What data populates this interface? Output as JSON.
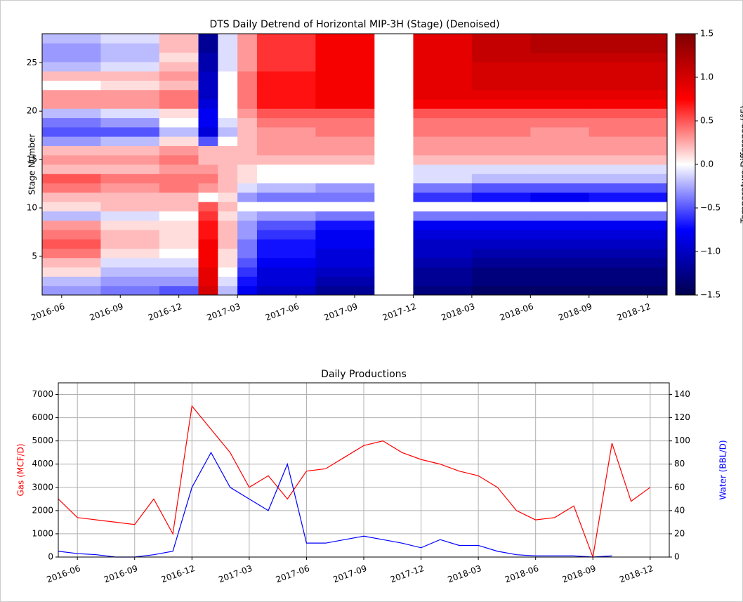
{
  "chart_data": [
    {
      "type": "heatmap",
      "title": "DTS Daily Detrend of Horizontal MIP-3H (Stage)  (Denoised)",
      "ylabel": "Stage Number",
      "colormap": "seismic",
      "x_bins": [
        "2016-05",
        "2016-08",
        "2016-11",
        "2017-01",
        "2017-02",
        "2017-03",
        "2017-04",
        "2017-07",
        "2017-10",
        "2017-12",
        "2018-03",
        "2018-06",
        "2018-09",
        "2019-01"
      ],
      "xlim": [
        "2016-05",
        "2019-01"
      ],
      "xticks": [
        "2016-06",
        "2016-09",
        "2016-12",
        "2017-03",
        "2017-06",
        "2017-09",
        "2017-12",
        "2018-03",
        "2018-06",
        "2018-09",
        "2018-12"
      ],
      "ylim": [
        1,
        28
      ],
      "yticks": [
        5,
        10,
        15,
        20,
        25
      ],
      "z": [
        [
          -0.3,
          -0.4,
          -0.5,
          1.0,
          -0.2,
          -0.8,
          -1.0,
          -1.2,
          null,
          -1.3,
          -1.4,
          -1.4,
          -1.4
        ],
        [
          -0.2,
          -0.3,
          -0.3,
          0.9,
          -0.1,
          -0.7,
          -0.9,
          -1.1,
          null,
          -1.2,
          -1.3,
          -1.3,
          -1.3
        ],
        [
          0.1,
          -0.2,
          -0.2,
          0.9,
          0,
          -0.6,
          -0.9,
          -1.0,
          null,
          -1.2,
          -1.3,
          -1.3,
          -1.3
        ],
        [
          0.2,
          -0.1,
          -0.1,
          0.8,
          0.1,
          -0.5,
          -0.8,
          -0.9,
          null,
          -1.1,
          -1.2,
          -1.2,
          -1.2
        ],
        [
          0.4,
          0.1,
          0,
          0.8,
          0.1,
          -0.4,
          -0.7,
          -0.9,
          null,
          -1.0,
          -1.1,
          -1.1,
          -1.1
        ],
        [
          0.5,
          0.2,
          0.1,
          0.8,
          0.2,
          -0.4,
          -0.7,
          -0.8,
          null,
          -1.0,
          -1.0,
          -1.0,
          -1.0
        ],
        [
          0.4,
          0.2,
          0.1,
          0.7,
          0.2,
          -0.3,
          -0.6,
          -0.8,
          null,
          -0.9,
          -0.9,
          -0.9,
          -0.9
        ],
        [
          0.3,
          0.1,
          0.1,
          0.7,
          0.2,
          -0.3,
          -0.5,
          -0.7,
          null,
          -0.8,
          -0.8,
          -0.8,
          -0.8
        ],
        [
          -0.2,
          -0.1,
          0,
          0.6,
          0.1,
          -0.2,
          -0.3,
          -0.4,
          null,
          -0.4,
          -0.4,
          -0.4,
          -0.4
        ],
        [
          0.1,
          0.2,
          0.2,
          0.5,
          0.2,
          0,
          0,
          0,
          null,
          0,
          0,
          0,
          0
        ],
        [
          0.2,
          0.2,
          0.2,
          0,
          0.1,
          -0.3,
          -0.4,
          -0.4,
          null,
          -0.6,
          -0.7,
          -0.8,
          -0.7
        ],
        [
          0.4,
          0.3,
          0.4,
          0.3,
          0.2,
          -0.1,
          -0.2,
          -0.3,
          null,
          -0.4,
          -0.5,
          -0.5,
          -0.5
        ],
        [
          0.5,
          0.4,
          0.4,
          0.4,
          0.2,
          0.1,
          0,
          0,
          null,
          -0.1,
          -0.2,
          -0.2,
          -0.2
        ],
        [
          0.2,
          0.2,
          0.3,
          0.3,
          0.2,
          0.1,
          0,
          0,
          null,
          -0.1,
          -0.1,
          -0.1,
          -0.1
        ],
        [
          0.3,
          0.3,
          0.4,
          0.2,
          0.2,
          0.2,
          0.2,
          0.2,
          null,
          0.2,
          0.2,
          0.2,
          0.2
        ],
        [
          0.2,
          0.2,
          0.3,
          0.2,
          0.2,
          0.2,
          0.3,
          0.3,
          null,
          0.3,
          0.3,
          0.3,
          0.3
        ],
        [
          -0.3,
          -0.2,
          0.1,
          -0.5,
          0,
          0.2,
          0.3,
          0.3,
          null,
          0.3,
          0.3,
          0.3,
          0.3
        ],
        [
          -0.5,
          -0.5,
          -0.2,
          -0.9,
          -0.2,
          0.2,
          0.3,
          0.4,
          null,
          0.4,
          0.4,
          0.3,
          0.4
        ],
        [
          -0.4,
          -0.3,
          0,
          -0.8,
          -0.1,
          0.2,
          0.4,
          0.4,
          null,
          0.4,
          0.4,
          0.4,
          0.4
        ],
        [
          -0.2,
          -0.1,
          0.1,
          -0.8,
          0,
          0.3,
          0.5,
          0.5,
          null,
          0.5,
          0.5,
          0.5,
          0.5
        ],
        [
          0.3,
          0.3,
          0.4,
          -0.9,
          0,
          0.4,
          0.7,
          0.8,
          null,
          0.8,
          0.8,
          0.8,
          0.8
        ],
        [
          0.3,
          0.3,
          0.4,
          -1.0,
          0,
          0.4,
          0.7,
          0.8,
          null,
          0.9,
          0.9,
          0.9,
          0.9
        ],
        [
          0,
          0.1,
          0.2,
          -1.0,
          0,
          0.4,
          0.7,
          0.8,
          null,
          0.9,
          1.0,
          1.0,
          1.0
        ],
        [
          0.2,
          0.2,
          0.3,
          -1.0,
          0,
          0.4,
          0.7,
          0.8,
          null,
          0.9,
          1.0,
          1.0,
          1.0
        ],
        [
          -0.2,
          -0.1,
          0.2,
          -1.1,
          -0.1,
          0.3,
          0.6,
          0.8,
          null,
          0.9,
          1.0,
          1.0,
          1.0
        ],
        [
          -0.3,
          -0.2,
          0.1,
          -1.1,
          -0.1,
          0.3,
          0.6,
          0.8,
          null,
          0.9,
          1.1,
          1.1,
          1.1
        ],
        [
          -0.3,
          -0.2,
          0.2,
          -1.2,
          -0.1,
          0.3,
          0.6,
          0.8,
          null,
          0.9,
          1.1,
          1.2,
          1.2
        ],
        [
          -0.2,
          -0.1,
          0.2,
          -1.2,
          -0.1,
          0.3,
          0.6,
          0.8,
          null,
          0.9,
          1.1,
          1.2,
          1.2
        ]
      ],
      "colorbar": {
        "label": "Temperature Difference (°F)",
        "lim": [
          -1.5,
          1.5
        ],
        "ticks": [
          {
            "value": -1.5,
            "label": "−1.5"
          },
          {
            "value": -1.0,
            "label": "−1.0"
          },
          {
            "value": -0.5,
            "label": "−0.5"
          },
          {
            "value": 0,
            "label": "0.0"
          },
          0.5,
          {
            "value": 1.0,
            "label": "1.0"
          },
          1.5
        ]
      }
    },
    {
      "type": "line",
      "title": "Daily Productions",
      "ylabel": "Gas (MCF/D)",
      "y2label": "Water (BBL/D)",
      "grid": true,
      "x": [
        "2016-05",
        "2016-06",
        "2016-07",
        "2016-08",
        "2016-09",
        "2016-10",
        "2016-11",
        "2016-12",
        "2017-01",
        "2017-02",
        "2017-03",
        "2017-04",
        "2017-05",
        "2017-06",
        "2017-07",
        "2017-08",
        "2017-09",
        "2017-10",
        "2017-11",
        "2017-12",
        "2018-01",
        "2018-02",
        "2018-03",
        "2018-04",
        "2018-05",
        "2018-06",
        "2018-07",
        "2018-08",
        "2018-09",
        "2018-10",
        "2018-11",
        "2018-12"
      ],
      "xlim": [
        "2016-05",
        "2019-01"
      ],
      "xticks": [
        "2016-06",
        "2016-09",
        "2016-12",
        "2017-03",
        "2017-06",
        "2017-09",
        "2017-12",
        "2018-03",
        "2018-06",
        "2018-09",
        "2018-12"
      ],
      "ylim": [
        0,
        7500
      ],
      "yticks": [
        0,
        1000,
        2000,
        3000,
        4000,
        5000,
        6000,
        7000
      ],
      "y2lim": [
        0,
        150
      ],
      "y2ticks": [
        0,
        20,
        40,
        60,
        80,
        100,
        120,
        140
      ],
      "series": [
        {
          "color": "#ff0000",
          "values": [
            2500,
            1700,
            1600,
            1500,
            1400,
            2500,
            1000,
            6500,
            5500,
            4500,
            3000,
            3500,
            2500,
            3700,
            3800,
            4300,
            4800,
            5000,
            4500,
            4200,
            4000,
            3700,
            3500,
            3000,
            2000,
            1600,
            1700,
            2200,
            0,
            4900,
            2400,
            3000
          ]
        },
        {
          "color": "#0000ff",
          "axis": "y2",
          "values": [
            5,
            3,
            2,
            0,
            0,
            2,
            5,
            60,
            90,
            60,
            50,
            40,
            80,
            12,
            12,
            15,
            18,
            15,
            12,
            8,
            15,
            10,
            10,
            5,
            2,
            1,
            1,
            1,
            0,
            1,
            null,
            null
          ]
        }
      ]
    }
  ]
}
